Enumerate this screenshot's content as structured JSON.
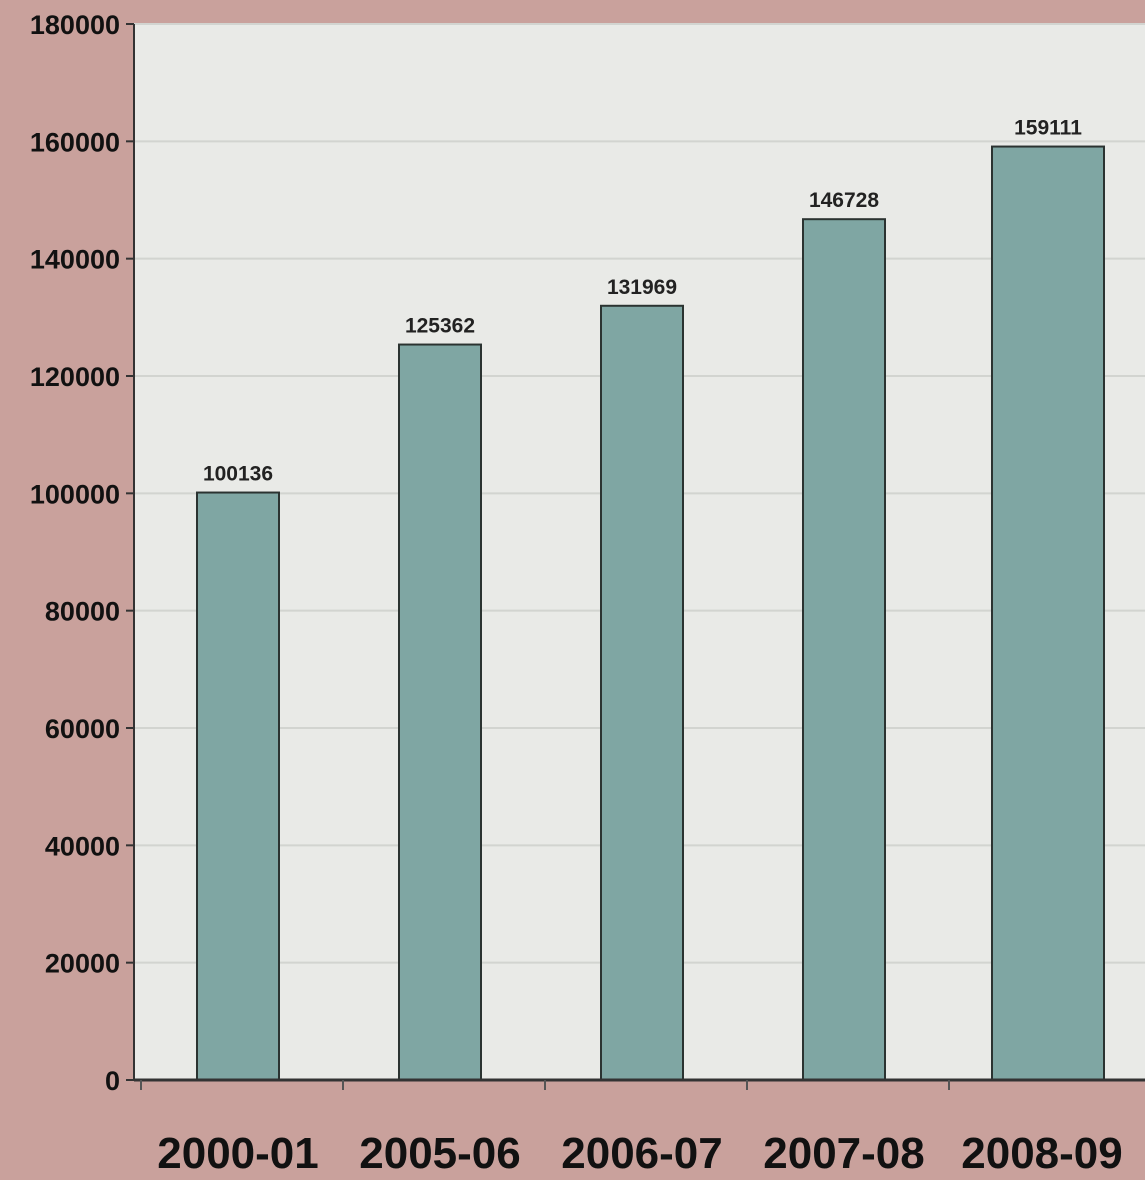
{
  "chart_data": {
    "type": "bar",
    "categories": [
      "2000-01",
      "2005-06",
      "2006-07",
      "2007-08",
      "2008-09"
    ],
    "values": [
      100136,
      125362,
      131969,
      146728,
      159111
    ],
    "data_labels": [
      "100136",
      "125362",
      "131969",
      "146728",
      "159111"
    ],
    "title": "",
    "xlabel": "",
    "ylabel": "",
    "ylim": [
      0,
      180000
    ],
    "yticks": [
      0,
      20000,
      40000,
      60000,
      80000,
      100000,
      120000,
      140000,
      160000,
      180000
    ],
    "ytick_labels": [
      "0",
      "20000",
      "40000",
      "60000",
      "80000",
      "100000",
      "120000",
      "140000",
      "160000",
      "180000"
    ],
    "grid": true,
    "legend": "none",
    "colors": {
      "background": "#c9a19c",
      "plot_area": "#e9eae7",
      "bar_fill": "#7fa6a3",
      "bar_edge": "#2b3331",
      "gridline": "#d2d4d0"
    }
  }
}
